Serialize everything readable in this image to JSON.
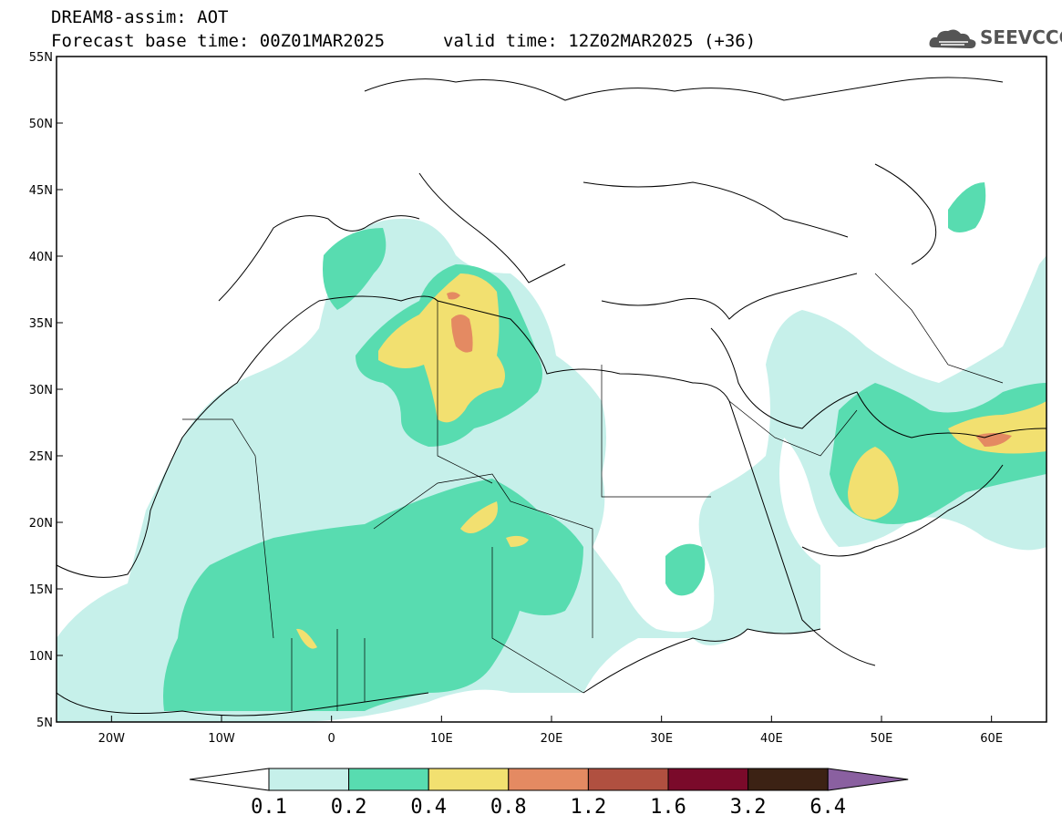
{
  "header": {
    "title": "DREAM8-assim: AOT",
    "base_time": "Forecast base time: 00Z01MAR2025",
    "valid_time": "valid time: 12Z02MAR2025 (+36)"
  },
  "logo": {
    "text": "SEEVCCC",
    "icon": "cloud-icon"
  },
  "map": {
    "lon_range": [
      -25,
      65
    ],
    "lat_range": [
      5,
      55
    ],
    "lat_ticks": [
      "55N",
      "50N",
      "45N",
      "40N",
      "35N",
      "30N",
      "25N",
      "20N",
      "15N",
      "10N",
      "5N"
    ],
    "lon_ticks": [
      "20W",
      "10W",
      "0",
      "10E",
      "20E",
      "30E",
      "40E",
      "50E",
      "60E"
    ]
  },
  "colorbar": {
    "labels": [
      "0.1",
      "0.2",
      "0.4",
      "0.8",
      "1.2",
      "1.6",
      "3.2",
      "6.4"
    ],
    "colors": [
      "#c6f0ea",
      "#58dcb0",
      "#f2e070",
      "#e48a62",
      "#b05040",
      "#7a0a2a",
      "#3c2214",
      "#8a60a0"
    ]
  }
}
